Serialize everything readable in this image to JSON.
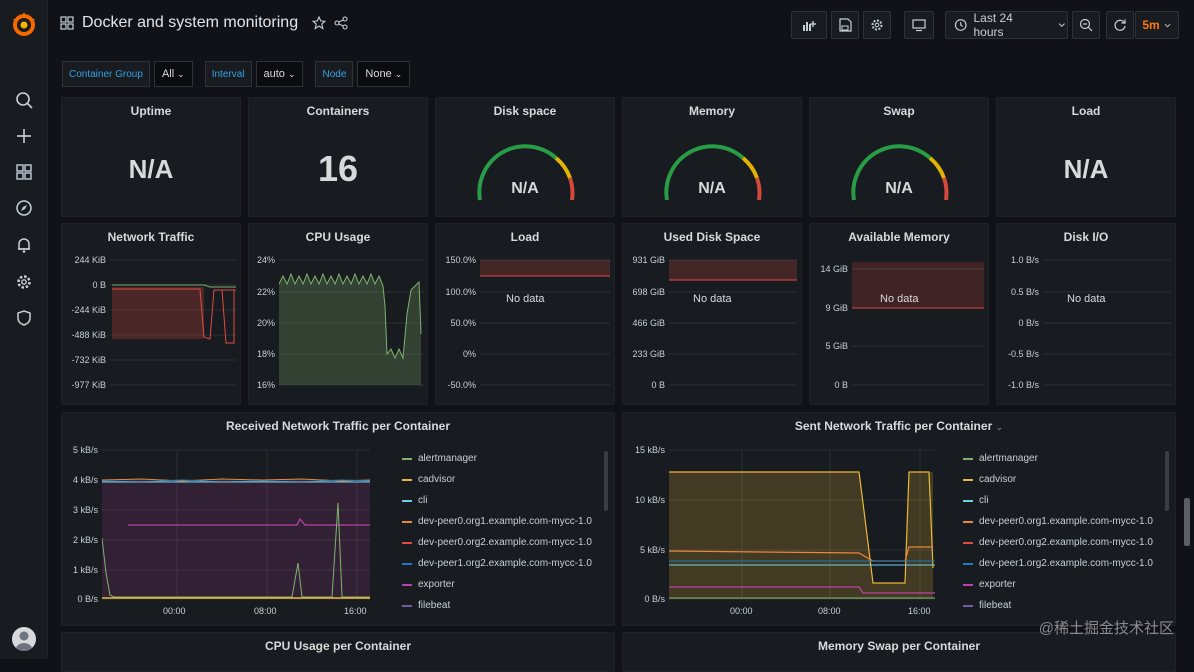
{
  "dashboard": {
    "title": "Docker and system monitoring",
    "time_range": "Last 24 hours",
    "refresh": "5m"
  },
  "variables": [
    {
      "label": "Container Group",
      "value": "All"
    },
    {
      "label": "Interval",
      "value": "auto"
    },
    {
      "label": "Node",
      "value": "None"
    }
  ],
  "stat_panels": {
    "uptime": {
      "title": "Uptime",
      "value": "N/A"
    },
    "containers": {
      "title": "Containers",
      "value": "16"
    },
    "disk_space": {
      "title": "Disk space",
      "value": "N/A"
    },
    "memory": {
      "title": "Memory",
      "value": "N/A"
    },
    "swap": {
      "title": "Swap",
      "value": "N/A"
    },
    "load": {
      "title": "Load",
      "value": "N/A"
    }
  },
  "graph_panels": {
    "network_traffic": {
      "title": "Network Traffic",
      "yticks": [
        "244 KiB",
        "0 B",
        "-244 KiB",
        "-488 KiB",
        "-732 KiB",
        "-977 KiB"
      ]
    },
    "cpu_usage": {
      "title": "CPU Usage",
      "yticks": [
        "24%",
        "22%",
        "20%",
        "18%",
        "16%"
      ]
    },
    "load": {
      "title": "Load",
      "yticks": [
        "150.0%",
        "100.0%",
        "50.0%",
        "0%",
        "-50.0%"
      ],
      "nodata": "No data"
    },
    "used_disk": {
      "title": "Used Disk Space",
      "yticks": [
        "931 GiB",
        "698 GiB",
        "466 GiB",
        "233 GiB",
        "0 B"
      ],
      "nodata": "No data"
    },
    "avail_mem": {
      "title": "Available Memory",
      "yticks": [
        "14 GiB",
        "9 GiB",
        "5 GiB",
        "0 B"
      ],
      "nodata": "No data"
    },
    "disk_io": {
      "title": "Disk I/O",
      "yticks": [
        "1.0 B/s",
        "0.5 B/s",
        "0 B/s",
        "-0.5 B/s",
        "-1.0 B/s"
      ],
      "nodata": "No data"
    }
  },
  "received": {
    "title": "Received Network Traffic per Container",
    "yticks": [
      "5 kB/s",
      "4 kB/s",
      "3 kB/s",
      "2 kB/s",
      "1 kB/s",
      "0 B/s"
    ],
    "xticks": [
      "00:00",
      "08:00",
      "16:00"
    ]
  },
  "sent": {
    "title": "Sent Network Traffic per Container",
    "yticks": [
      "15 kB/s",
      "10 kB/s",
      "5 kB/s",
      "0 B/s"
    ],
    "xticks": [
      "00:00",
      "08:00",
      "16:00"
    ]
  },
  "legend": [
    {
      "name": "alertmanager",
      "color": "#7eb26d"
    },
    {
      "name": "cadvisor",
      "color": "#eab839"
    },
    {
      "name": "cli",
      "color": "#6ed0e0"
    },
    {
      "name": "dev-peer0.org1.example.com-mycc-1.0",
      "color": "#ef843c"
    },
    {
      "name": "dev-peer0.org2.example.com-mycc-1.0",
      "color": "#e24d42"
    },
    {
      "name": "dev-peer1.org2.example.com-mycc-1.0",
      "color": "#1f78c1"
    },
    {
      "name": "exporter",
      "color": "#ba43a9"
    },
    {
      "name": "filebeat",
      "color": "#705da0"
    }
  ],
  "bottom_panels": {
    "cpu_per_container": "CPU Usage per Container",
    "swap_per_container": "Memory Swap per Container"
  },
  "watermark": "@稀土掘金技术社区"
}
